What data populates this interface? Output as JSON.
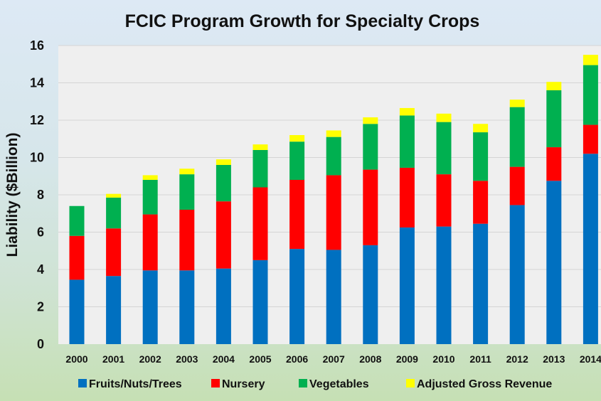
{
  "chart_data": {
    "type": "bar",
    "stacked": true,
    "title": "FCIC Program Growth for Specialty Crops",
    "xlabel": "",
    "ylabel": "Liability ($Billion)",
    "ylim": [
      0,
      16
    ],
    "yticks": [
      0,
      2,
      4,
      6,
      8,
      10,
      12,
      14,
      16
    ],
    "grid": true,
    "legend_position": "bottom",
    "categories": [
      "2000",
      "2001",
      "2002",
      "2003",
      "2004",
      "2005",
      "2006",
      "2007",
      "2008",
      "2009",
      "2010",
      "2011",
      "2012",
      "2013",
      "2014"
    ],
    "series": [
      {
        "name": "Fruits/Nuts/Trees",
        "color": "#0070c0",
        "values": [
          3.45,
          3.65,
          3.95,
          3.95,
          4.05,
          4.5,
          5.1,
          5.05,
          5.3,
          6.25,
          6.3,
          6.45,
          7.45,
          8.75,
          10.2
        ]
      },
      {
        "name": "Nursery",
        "color": "#ff0000",
        "values": [
          2.35,
          2.55,
          3.0,
          3.25,
          3.6,
          3.9,
          3.7,
          4.0,
          4.05,
          3.2,
          2.8,
          2.3,
          2.05,
          1.8,
          1.55
        ]
      },
      {
        "name": "Vegetables",
        "color": "#00b050",
        "values": [
          1.6,
          1.65,
          1.85,
          1.9,
          1.95,
          2.0,
          2.05,
          2.05,
          2.45,
          2.8,
          2.8,
          2.6,
          3.2,
          3.05,
          3.2
        ]
      },
      {
        "name": "Adjusted Gross Revenue",
        "color": "#ffff00",
        "values": [
          0,
          0.2,
          0.25,
          0.3,
          0.3,
          0.3,
          0.35,
          0.35,
          0.35,
          0.4,
          0.45,
          0.45,
          0.4,
          0.45,
          0.55
        ]
      }
    ]
  },
  "colors": {
    "plot_background": "#efefef",
    "gridline": "#d4d4d4"
  }
}
